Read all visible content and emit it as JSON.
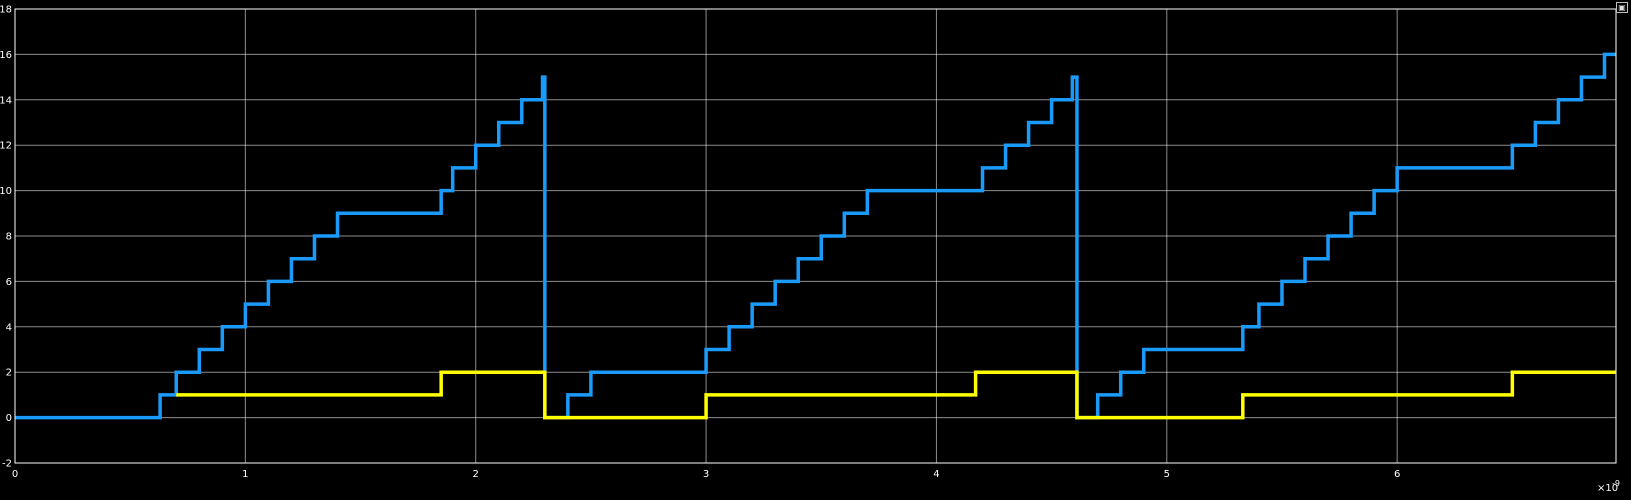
{
  "chart_data": {
    "type": "line",
    "title": "",
    "xlabel": "",
    "ylabel": "",
    "xlim": [
      0,
      6.95
    ],
    "ylim": [
      -2,
      18
    ],
    "x_ticks": [
      0,
      1,
      2,
      3,
      4,
      5,
      6
    ],
    "y_ticks": [
      -2,
      0,
      2,
      4,
      6,
      8,
      10,
      12,
      14,
      16,
      18
    ],
    "x_exponent_label": "×10",
    "x_exponent_power": "-9",
    "grid": true,
    "background": "#000000",
    "grid_color": "#ffffff",
    "series": [
      {
        "color": "#1a9bfc",
        "step": true,
        "x": [
          0,
          0.63,
          0.7,
          0.8,
          0.9,
          1.0,
          1.1,
          1.2,
          1.3,
          1.4,
          1.85,
          1.9,
          2.0,
          2.1,
          2.2,
          2.29,
          2.3,
          2.4,
          2.5,
          3.0,
          3.1,
          3.2,
          3.3,
          3.4,
          3.5,
          3.6,
          3.7,
          4.2,
          4.3,
          4.4,
          4.5,
          4.59,
          4.61,
          4.7,
          4.8,
          4.9,
          5.33,
          5.4,
          5.5,
          5.6,
          5.7,
          5.8,
          5.9,
          6.0,
          6.5,
          6.6,
          6.7,
          6.8,
          6.9,
          6.95
        ],
        "y": [
          0,
          1,
          2,
          3,
          4,
          5,
          6,
          7,
          8,
          9,
          10,
          11,
          12,
          13,
          14,
          15,
          0,
          1,
          2,
          3,
          4,
          5,
          6,
          7,
          8,
          9,
          10,
          11,
          12,
          13,
          14,
          15,
          0,
          1,
          2,
          3,
          4,
          5,
          6,
          7,
          8,
          9,
          10,
          11,
          12,
          13,
          14,
          15,
          16,
          16
        ]
      },
      {
        "color": "#ffff00",
        "step": true,
        "x": [
          0.7,
          1.85,
          2.3,
          3.0,
          4.17,
          4.61,
          5.33,
          6.5,
          6.95
        ],
        "y": [
          1,
          2,
          0,
          1,
          2,
          0,
          1,
          2,
          2
        ]
      }
    ]
  },
  "corner_button_glyph": "▣"
}
